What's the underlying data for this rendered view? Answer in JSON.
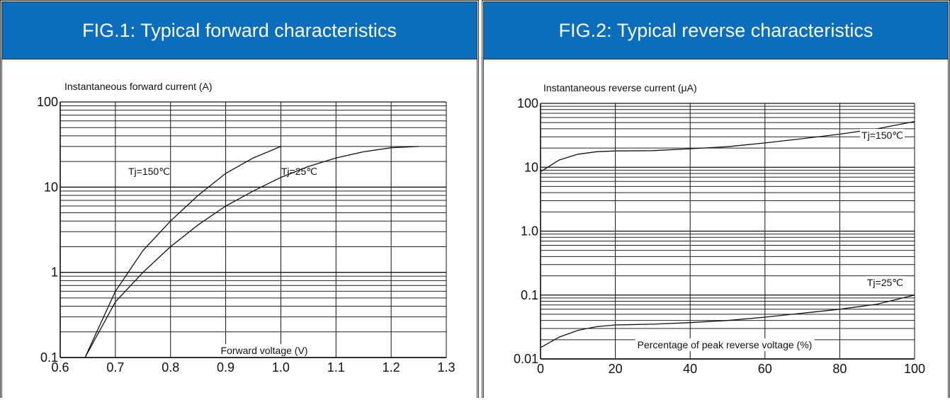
{
  "header_color": "#0a6ebd",
  "chart_data": [
    {
      "type": "line",
      "title": "FIG.1: Typical forward characteristics",
      "xlabel": "Forward voltage (V)",
      "ylabel": "Instantaneous forward current (A)",
      "x_ticks": [
        "0.6",
        "0.7",
        "0.8",
        "0.9",
        "1.0",
        "1.1",
        "1.2",
        "1.3"
      ],
      "y_ticks": [
        "0.1",
        "1",
        "10",
        "100"
      ],
      "xlim": [
        0.6,
        1.3
      ],
      "ylim": [
        0.1,
        100
      ],
      "y_scale": "log",
      "grid": true,
      "series": [
        {
          "name": "Tj=150℃",
          "x": [
            0.645,
            0.7,
            0.75,
            0.8,
            0.85,
            0.9,
            0.95,
            1.0
          ],
          "y": [
            0.1,
            0.6,
            1.8,
            4.0,
            8.0,
            14.5,
            22.0,
            30.0
          ]
        },
        {
          "name": "Tj=25℃",
          "x": [
            0.645,
            0.7,
            0.75,
            0.8,
            0.85,
            0.9,
            0.95,
            1.0,
            1.05,
            1.1,
            1.15,
            1.2,
            1.25
          ],
          "y": [
            0.1,
            0.45,
            1.0,
            2.0,
            3.6,
            6.0,
            9.0,
            13.0,
            17.5,
            22.0,
            26.0,
            29.0,
            30.0
          ]
        }
      ]
    },
    {
      "type": "line",
      "title": "FIG.2: Typical reverse characteristics",
      "xlabel": "Percentage of peak reverse voltage (%)",
      "ylabel": "Instantaneous reverse current (μA)",
      "x_ticks": [
        "0",
        "20",
        "40",
        "60",
        "80",
        "100"
      ],
      "y_ticks": [
        "0.01",
        "0.1",
        "1.0",
        "10",
        "100"
      ],
      "xlim": [
        0,
        100
      ],
      "ylim": [
        0.01,
        100
      ],
      "y_scale": "log",
      "grid": true,
      "series": [
        {
          "name": "Tj=150℃",
          "x": [
            0,
            5,
            10,
            15,
            20,
            30,
            40,
            50,
            60,
            70,
            80,
            90,
            100
          ],
          "y": [
            8.5,
            13.0,
            16.0,
            17.5,
            18.0,
            18.2,
            19.5,
            21.0,
            24.0,
            28.0,
            33.0,
            40.0,
            52.0
          ]
        },
        {
          "name": "Tj=25℃",
          "x": [
            0,
            5,
            10,
            15,
            20,
            30,
            40,
            50,
            60,
            70,
            80,
            90,
            100
          ],
          "y": [
            0.015,
            0.022,
            0.028,
            0.032,
            0.034,
            0.035,
            0.037,
            0.04,
            0.045,
            0.052,
            0.06,
            0.072,
            0.1
          ]
        }
      ]
    }
  ]
}
